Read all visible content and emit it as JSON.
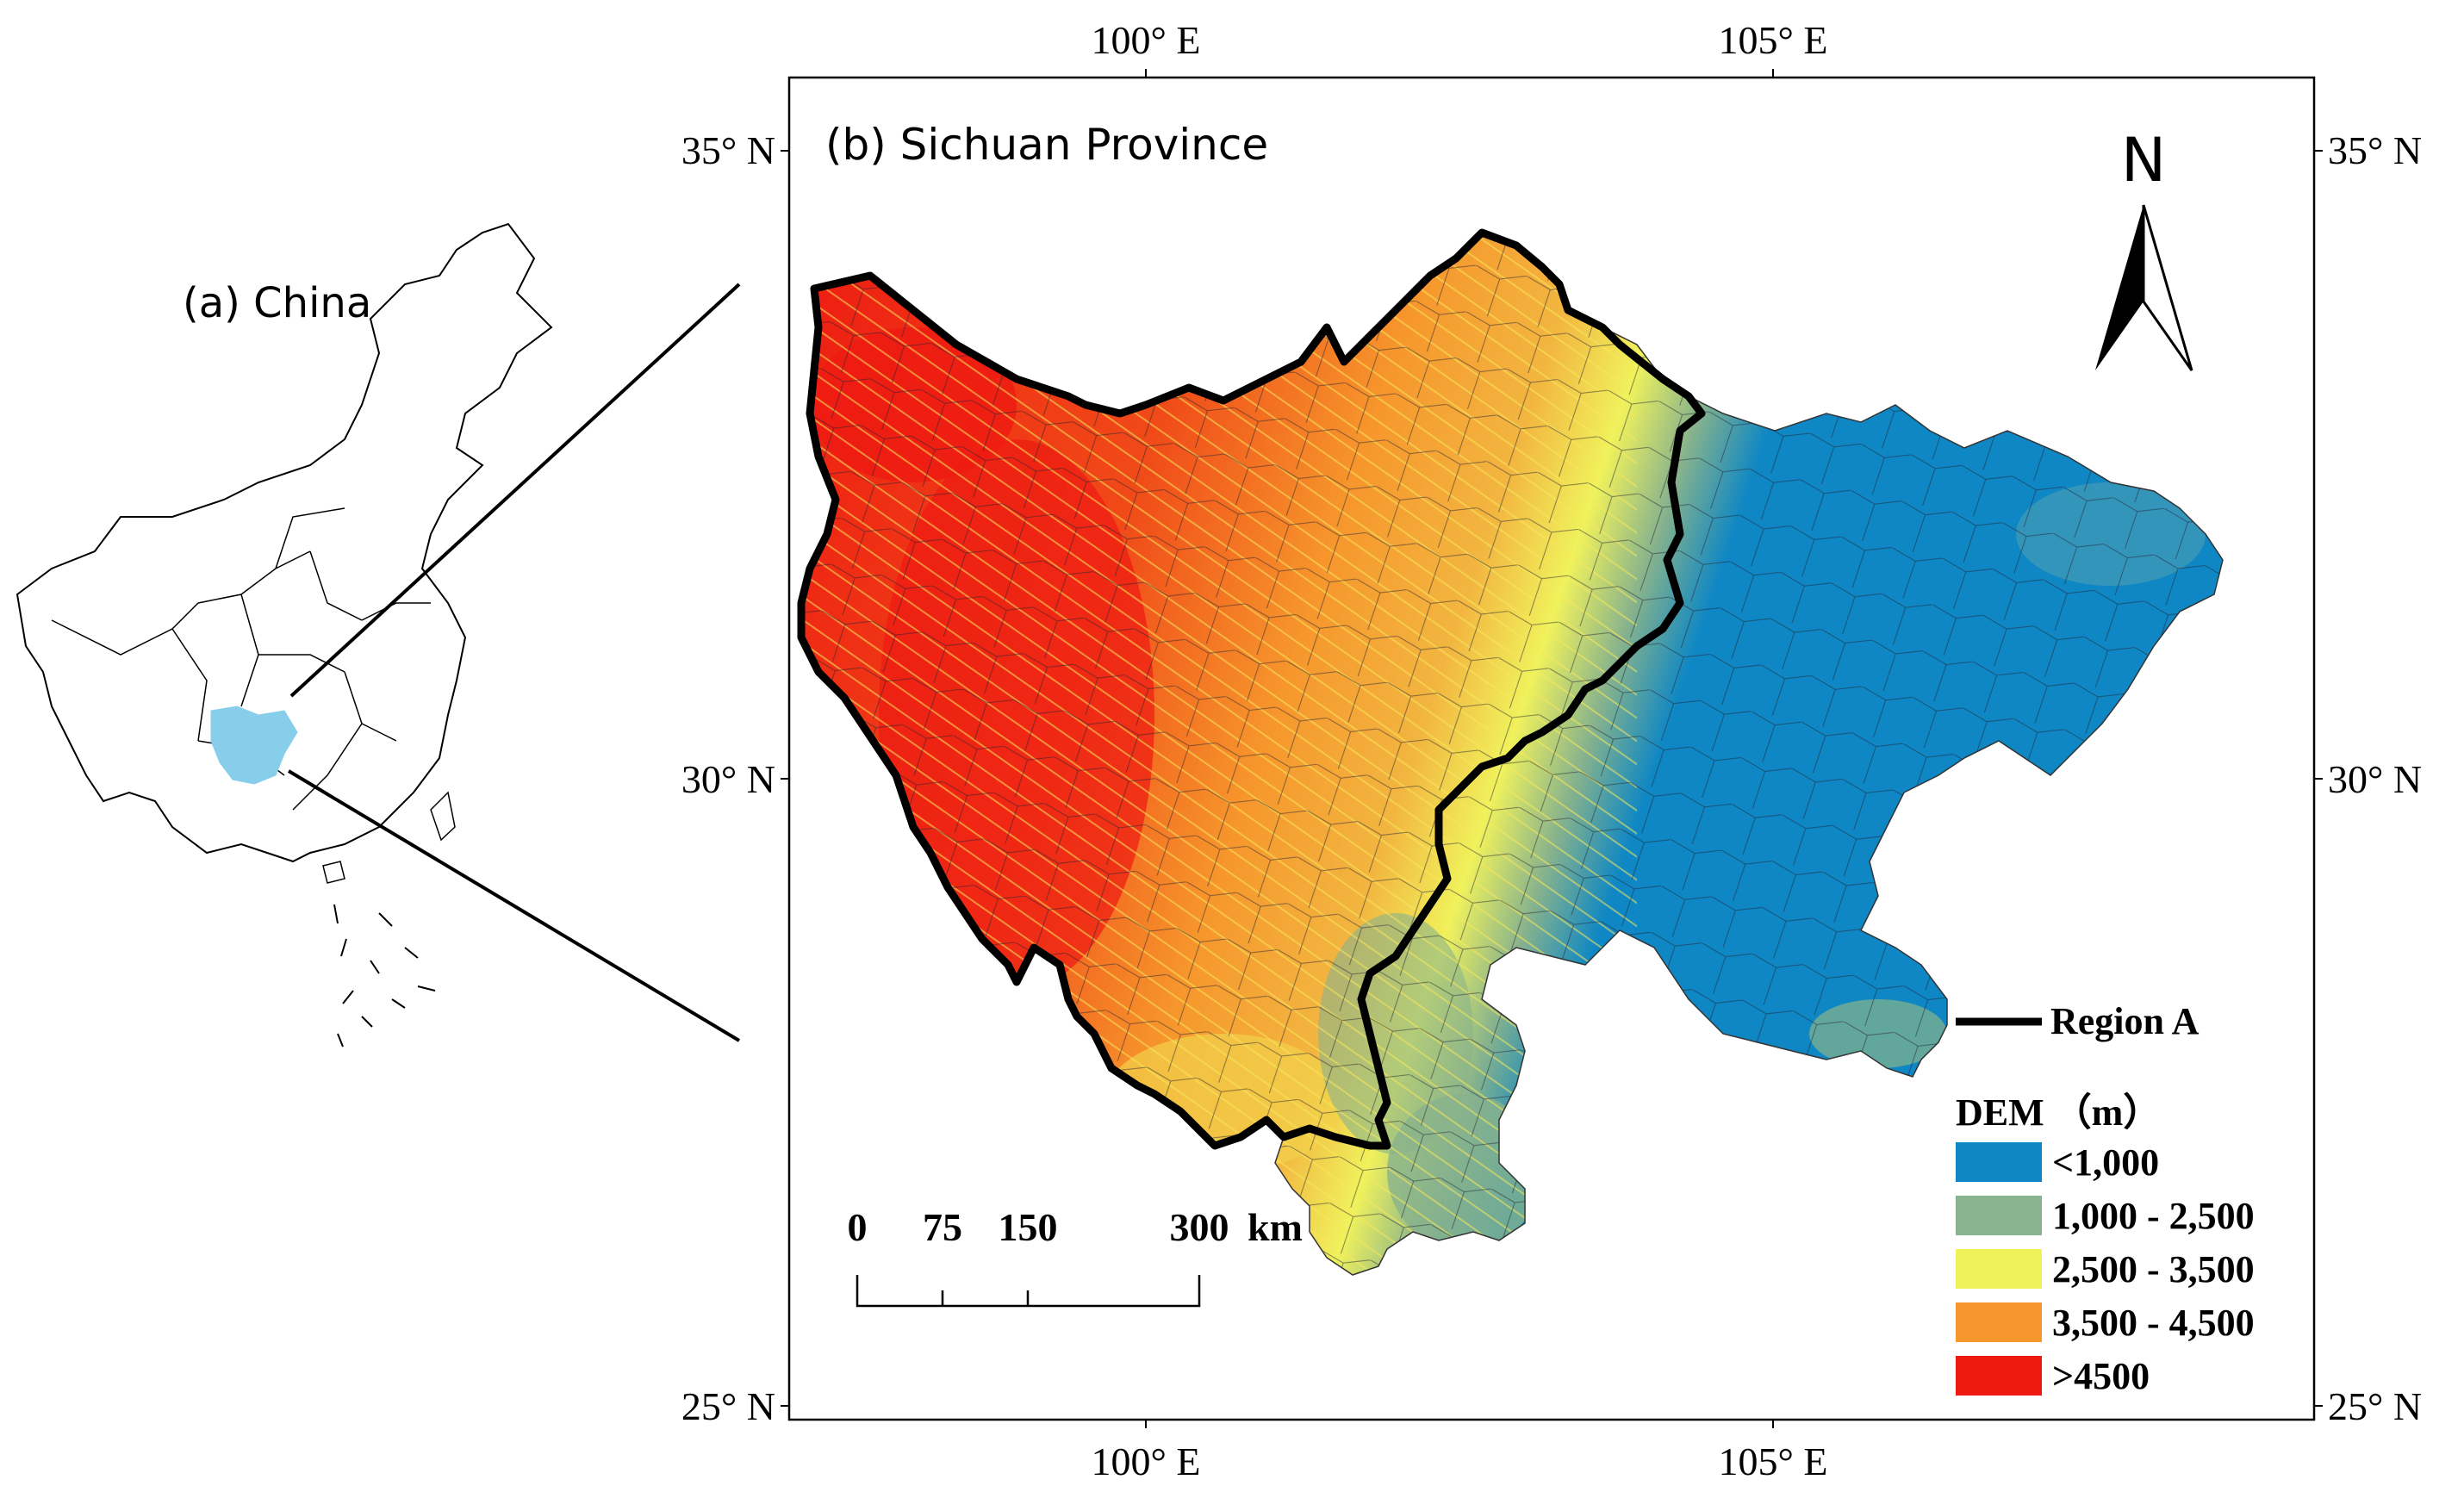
{
  "china_panel": {
    "label": "(a) China"
  },
  "sichuan_panel": {
    "title": "(b) Sichuan Province",
    "north_arrow_label": "N",
    "lon_ticks": [
      "100° E",
      "105° E"
    ],
    "lat_ticks": [
      "35° N",
      "30° N",
      "25° N"
    ],
    "boundary_legend_label": "Region A",
    "scale_bar": {
      "labels": [
        "0",
        "75",
        "150",
        "300"
      ],
      "unit": "km"
    },
    "dem_legend": {
      "title": "DEM （m）",
      "classes": [
        {
          "label": "<1,000",
          "color": "#0e87c4"
        },
        {
          "label": "1,000 - 2,500",
          "color": "#88b38c"
        },
        {
          "label": "2,500 - 3,500",
          "color": "#f0f25c"
        },
        {
          "label": "3,500 - 4,500",
          "color": "#f6962c"
        },
        {
          "label": ">4500",
          "color": "#ee1a12"
        }
      ]
    }
  },
  "colors": {
    "sichuan_highlight": "#87ceeb",
    "boundary": "#000000"
  }
}
